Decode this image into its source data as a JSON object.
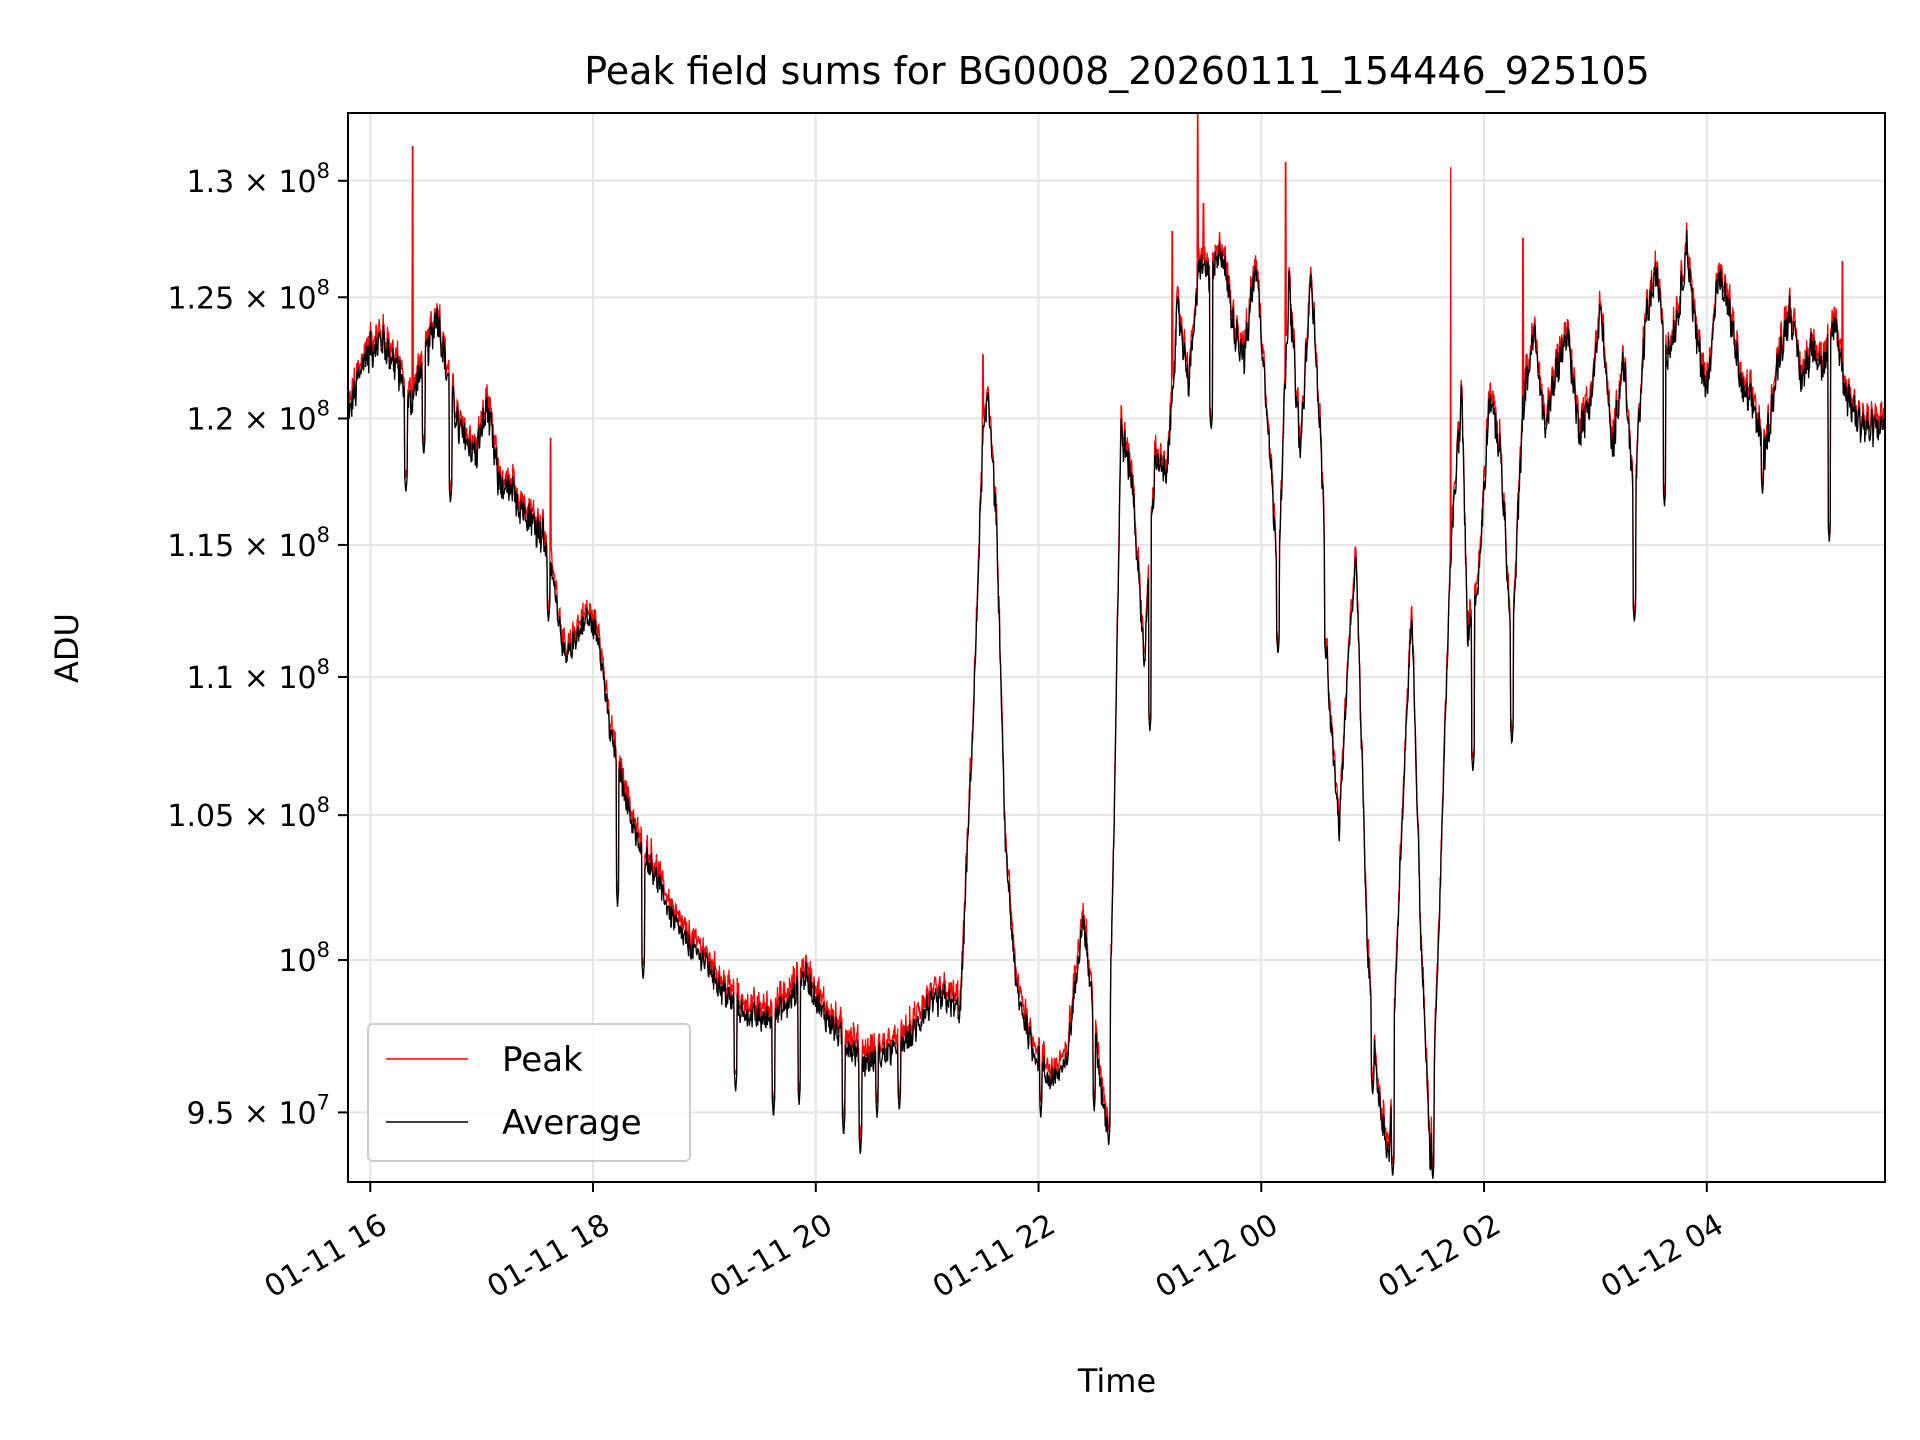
{
  "chart_data": {
    "type": "line",
    "title": "Peak field sums for BG0008_20260111_154446_925105",
    "xlabel": "Time",
    "ylabel": "ADU",
    "yscale": "log",
    "grid": true,
    "legend_position": "lower-left",
    "xlim_hours": [
      15.8,
      29.6
    ],
    "ylim": [
      92800000,
      133000000
    ],
    "x_ticks": [
      {
        "hour": 16,
        "label": "01-11 16"
      },
      {
        "hour": 18,
        "label": "01-11 18"
      },
      {
        "hour": 20,
        "label": "01-11 20"
      },
      {
        "hour": 22,
        "label": "01-11 22"
      },
      {
        "hour": 24,
        "label": "01-12 00"
      },
      {
        "hour": 26,
        "label": "01-12 02"
      },
      {
        "hour": 28,
        "label": "01-12 04"
      }
    ],
    "y_ticks": [
      {
        "value": 95000000,
        "mantissa": "9.5",
        "exponent": "7"
      },
      {
        "value": 100000000,
        "mantissa": "",
        "exponent": "8"
      },
      {
        "value": 105000000,
        "mantissa": "1.05",
        "exponent": "8"
      },
      {
        "value": 110000000,
        "mantissa": "1.1",
        "exponent": "8"
      },
      {
        "value": 115000000,
        "mantissa": "1.15",
        "exponent": "8"
      },
      {
        "value": 120000000,
        "mantissa": "1.2",
        "exponent": "8"
      },
      {
        "value": 125000000,
        "mantissa": "1.25",
        "exponent": "8"
      },
      {
        "value": 130000000,
        "mantissa": "1.3",
        "exponent": "8"
      }
    ],
    "times_multiply": "×",
    "tick_base": "10",
    "series": [
      {
        "name": "Peak",
        "color": "#ff0000"
      },
      {
        "name": "Average",
        "color": "#000000"
      }
    ],
    "average_keypoints": [
      [
        15.8,
        120.0
      ],
      [
        15.95,
        122.5
      ],
      [
        16.1,
        123.2
      ],
      [
        16.25,
        122.0
      ],
      [
        16.35,
        120.5
      ],
      [
        16.5,
        122.5
      ],
      [
        16.6,
        124.3
      ],
      [
        16.7,
        121.5
      ],
      [
        16.8,
        119.5
      ],
      [
        16.95,
        118.5
      ],
      [
        17.05,
        120.5
      ],
      [
        17.15,
        117.5
      ],
      [
        17.3,
        116.8
      ],
      [
        17.45,
        116.0
      ],
      [
        17.55,
        115.3
      ],
      [
        17.65,
        113.5
      ],
      [
        17.75,
        110.5
      ],
      [
        17.85,
        111.5
      ],
      [
        17.95,
        112.2
      ],
      [
        18.05,
        111.5
      ],
      [
        18.15,
        108.0
      ],
      [
        18.3,
        105.5
      ],
      [
        18.4,
        104.0
      ],
      [
        18.55,
        103.0
      ],
      [
        18.7,
        101.5
      ],
      [
        18.85,
        100.5
      ],
      [
        19.0,
        100.0
      ],
      [
        19.15,
        99.0
      ],
      [
        19.35,
        98.2
      ],
      [
        19.55,
        98.0
      ],
      [
        19.75,
        98.5
      ],
      [
        19.9,
        99.5
      ],
      [
        20.05,
        98.3
      ],
      [
        20.25,
        97.3
      ],
      [
        20.45,
        96.6
      ],
      [
        20.65,
        96.9
      ],
      [
        20.85,
        97.4
      ],
      [
        21.0,
        98.4
      ],
      [
        21.15,
        98.7
      ],
      [
        21.3,
        98.3
      ],
      [
        21.42,
        109.0
      ],
      [
        21.5,
        119.0
      ],
      [
        21.55,
        121.0
      ],
      [
        21.62,
        116.0
      ],
      [
        21.7,
        104.0
      ],
      [
        21.8,
        99.0
      ],
      [
        21.95,
        97.0
      ],
      [
        22.1,
        96.0
      ],
      [
        22.25,
        96.5
      ],
      [
        22.4,
        101.5
      ],
      [
        22.55,
        96.0
      ],
      [
        22.62,
        94.5
      ],
      [
        22.68,
        105.0
      ],
      [
        22.74,
        119.5
      ],
      [
        22.84,
        117.5
      ],
      [
        22.95,
        110.5
      ],
      [
        23.05,
        118.5
      ],
      [
        23.15,
        117.5
      ],
      [
        23.25,
        124.5
      ],
      [
        23.35,
        121.5
      ],
      [
        23.45,
        126.5
      ],
      [
        23.55,
        125.8
      ],
      [
        23.65,
        127.0
      ],
      [
        23.75,
        123.8
      ],
      [
        23.85,
        122.5
      ],
      [
        23.95,
        126.5
      ],
      [
        24.05,
        120.5
      ],
      [
        24.15,
        113.5
      ],
      [
        24.25,
        125.5
      ],
      [
        24.35,
        118.5
      ],
      [
        24.45,
        126.0
      ],
      [
        24.55,
        117.5
      ],
      [
        24.6,
        109.5
      ],
      [
        24.7,
        104.5
      ],
      [
        24.78,
        110.5
      ],
      [
        24.85,
        114.5
      ],
      [
        24.95,
        100.5
      ],
      [
        25.05,
        95.5
      ],
      [
        25.15,
        93.5
      ],
      [
        25.25,
        103.5
      ],
      [
        25.35,
        112.5
      ],
      [
        25.43,
        101.0
      ],
      [
        25.52,
        93.2
      ],
      [
        25.6,
        101.5
      ],
      [
        25.7,
        114.5
      ],
      [
        25.8,
        121.0
      ],
      [
        25.85,
        111.5
      ],
      [
        25.95,
        113.5
      ],
      [
        26.05,
        121.0
      ],
      [
        26.15,
        118.5
      ],
      [
        26.25,
        110.5
      ],
      [
        26.35,
        120.5
      ],
      [
        26.45,
        123.5
      ],
      [
        26.55,
        119.5
      ],
      [
        26.65,
        122.0
      ],
      [
        26.75,
        123.5
      ],
      [
        26.85,
        119.5
      ],
      [
        26.95,
        120.5
      ],
      [
        27.05,
        124.5
      ],
      [
        27.15,
        118.5
      ],
      [
        27.25,
        122.5
      ],
      [
        27.35,
        116.5
      ],
      [
        27.45,
        124.0
      ],
      [
        27.55,
        126.0
      ],
      [
        27.65,
        122.5
      ],
      [
        27.75,
        124.5
      ],
      [
        27.82,
        127.2
      ],
      [
        27.9,
        123.5
      ],
      [
        28.0,
        121.0
      ],
      [
        28.1,
        125.8
      ],
      [
        28.2,
        124.5
      ],
      [
        28.32,
        121.0
      ],
      [
        28.42,
        120.5
      ],
      [
        28.52,
        118.5
      ],
      [
        28.65,
        122.5
      ],
      [
        28.75,
        124.5
      ],
      [
        28.85,
        121.5
      ],
      [
        28.95,
        123.0
      ],
      [
        29.05,
        122.0
      ],
      [
        29.15,
        124.0
      ],
      [
        29.25,
        121.0
      ],
      [
        29.35,
        120.0
      ],
      [
        29.45,
        119.5
      ],
      [
        29.6,
        119.8
      ]
    ],
    "peak_spikes": [
      [
        16.38,
        131.5
      ],
      [
        23.2,
        127.8
      ],
      [
        23.43,
        133.0
      ],
      [
        23.48,
        129.0
      ],
      [
        24.22,
        130.8
      ],
      [
        25.7,
        130.6
      ],
      [
        26.35,
        127.5
      ],
      [
        29.22,
        126.5
      ],
      [
        21.5,
        122.6
      ],
      [
        17.62,
        119.2
      ]
    ],
    "dips": [
      [
        16.32,
        117.0
      ],
      [
        16.48,
        118.5
      ],
      [
        16.72,
        116.6
      ],
      [
        17.2,
        116.9
      ],
      [
        17.6,
        112.0
      ],
      [
        18.22,
        101.8
      ],
      [
        18.45,
        99.3
      ],
      [
        19.28,
        95.6
      ],
      [
        19.62,
        94.8
      ],
      [
        19.85,
        95.2
      ],
      [
        20.25,
        94.2
      ],
      [
        20.4,
        93.6
      ],
      [
        20.55,
        94.8
      ],
      [
        20.75,
        95.0
      ],
      [
        22.02,
        94.8
      ],
      [
        22.5,
        95.0
      ],
      [
        22.63,
        93.9
      ],
      [
        23.0,
        108.0
      ],
      [
        23.55,
        119.5
      ],
      [
        24.15,
        110.8
      ],
      [
        24.58,
        110.6
      ],
      [
        25.0,
        95.5
      ],
      [
        25.18,
        92.9
      ],
      [
        25.54,
        92.8
      ],
      [
        25.9,
        106.5
      ],
      [
        26.25,
        107.5
      ],
      [
        27.35,
        112.0
      ],
      [
        27.62,
        116.5
      ],
      [
        28.5,
        117.0
      ],
      [
        29.1,
        115.1
      ]
    ]
  }
}
